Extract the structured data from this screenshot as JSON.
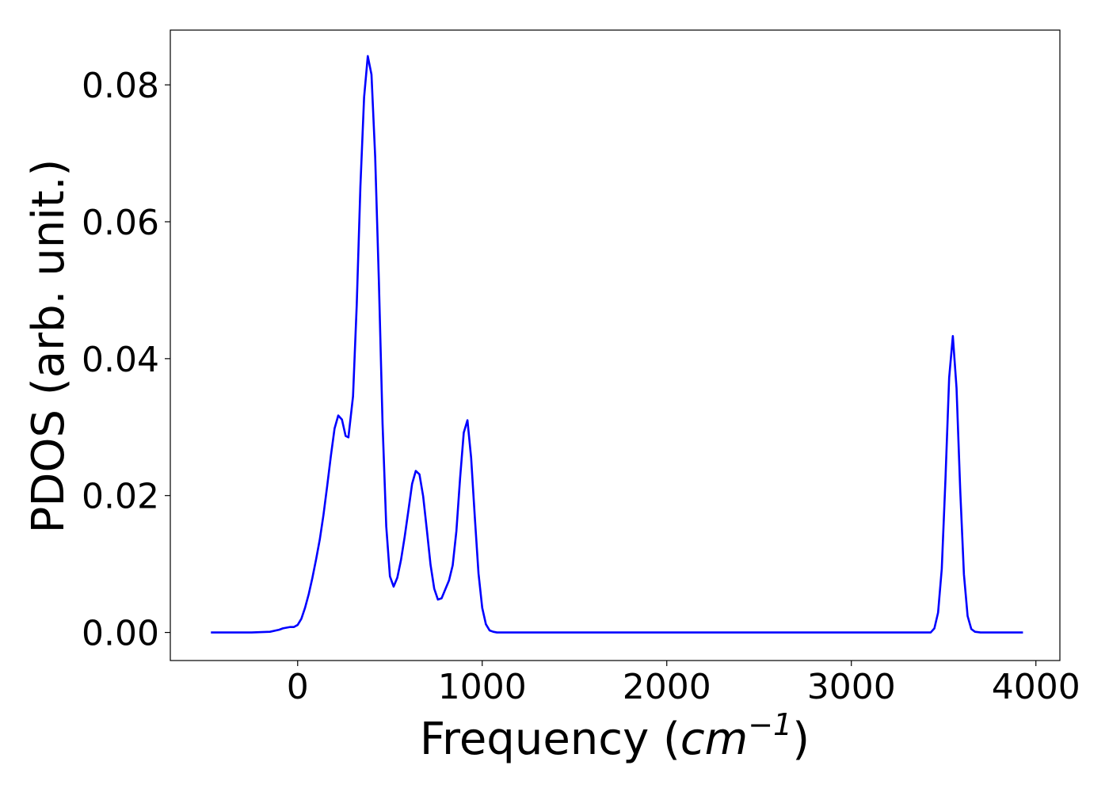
{
  "chart_data": {
    "type": "line",
    "title": "",
    "xlabel_main": "Frequency (",
    "xlabel_unit": "cm",
    "xlabel_exp": "−1",
    "xlabel_close": ")",
    "ylabel": "PDOS (arb. unit.)",
    "xlim": [
      -690,
      4130
    ],
    "ylim": [
      -0.0041,
      0.088
    ],
    "x_ticks": [
      0,
      1000,
      2000,
      3000,
      4000
    ],
    "x_tick_labels": [
      "0",
      "1000",
      "2000",
      "3000",
      "4000"
    ],
    "y_ticks": [
      0.0,
      0.02,
      0.04,
      0.06,
      0.08
    ],
    "y_tick_labels": [
      "0.00",
      "0.02",
      "0.04",
      "0.06",
      "0.08"
    ],
    "grid": false,
    "colors": {
      "line": "#0000ff",
      "frame": "#000000"
    },
    "series": [
      {
        "x": [
          -470,
          -350,
          -250,
          -150,
          -100,
          -80,
          -60,
          -40,
          -20,
          0,
          20,
          40,
          60,
          80,
          100,
          120,
          140,
          160,
          180,
          200,
          220,
          240,
          260,
          275,
          300,
          320,
          340,
          360,
          380,
          400,
          420,
          440,
          460,
          480,
          500,
          520,
          540,
          560,
          580,
          600,
          620,
          640,
          660,
          680,
          700,
          720,
          740,
          760,
          780,
          800,
          820,
          840,
          860,
          880,
          900,
          920,
          940,
          960,
          980,
          1000,
          1020,
          1040,
          1060,
          1080,
          1100,
          1120,
          1140,
          1160,
          1180,
          1200,
          1300,
          1500,
          2000,
          2500,
          3000,
          3300,
          3400,
          3430,
          3450,
          3470,
          3490,
          3510,
          3530,
          3550,
          3570,
          3590,
          3610,
          3630,
          3650,
          3670,
          3700,
          3800,
          3930
        ],
        "y": [
          0.0,
          0.0,
          0.0,
          0.0001,
          0.0004,
          0.0006,
          0.0007,
          0.0008,
          0.0008,
          0.0011,
          0.002,
          0.0036,
          0.0056,
          0.008,
          0.0107,
          0.0136,
          0.0172,
          0.0214,
          0.0258,
          0.0298,
          0.0317,
          0.0311,
          0.0287,
          0.0285,
          0.0345,
          0.0478,
          0.0652,
          0.0782,
          0.0842,
          0.0815,
          0.0695,
          0.0514,
          0.0305,
          0.0155,
          0.0082,
          0.0067,
          0.008,
          0.0106,
          0.014,
          0.0178,
          0.0217,
          0.0236,
          0.0231,
          0.0199,
          0.015,
          0.0099,
          0.0064,
          0.0048,
          0.005,
          0.0063,
          0.0076,
          0.0098,
          0.0148,
          0.0225,
          0.0292,
          0.031,
          0.0255,
          0.0168,
          0.0086,
          0.0036,
          0.0012,
          0.0003,
          0.0001,
          0.0,
          0.0,
          0.0,
          0.0,
          0.0,
          0.0,
          0.0,
          0.0,
          0.0,
          0.0,
          0.0,
          0.0,
          0.0,
          0.0,
          0.0,
          0.0006,
          0.0029,
          0.0093,
          0.0224,
          0.0372,
          0.0433,
          0.0357,
          0.0208,
          0.0085,
          0.0024,
          0.0005,
          0.0001,
          0.0,
          0.0,
          0.0
        ]
      }
    ]
  }
}
